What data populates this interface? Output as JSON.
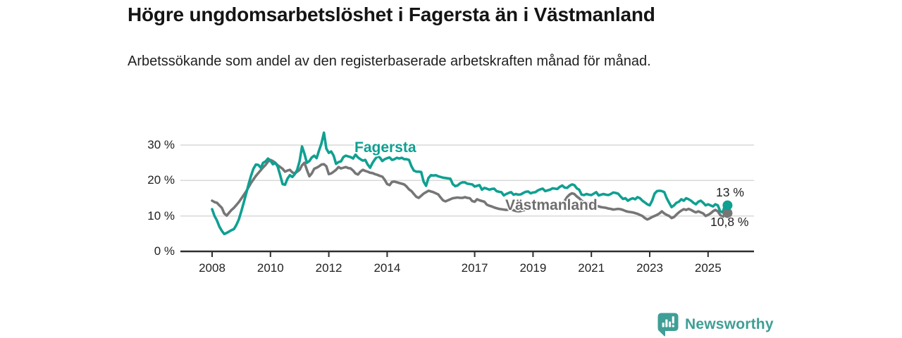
{
  "header": {
    "title": "Högre ungdomsarbetslöshet i Fagersta än i Västmanland",
    "subtitle": "Arbetssökande som andel av den registerbaserade arbetskraften månad för månad."
  },
  "branding": {
    "name": "Newsworthy",
    "icon": "bar-chart-speech-bubble-logo"
  },
  "colors": {
    "fagersta": "#0FA091",
    "vastmanland": "#767676",
    "grid": "#d9d9d9",
    "axis": "#2e2e2e",
    "title_text": "#141414",
    "logo_teal": "#3f9e95"
  },
  "chart_data": {
    "type": "line",
    "title": "Högre ungdomsarbetslöshet i Fagersta än i Västmanland",
    "subtitle": "Arbetssökande som andel av den registerbaserade arbetskraften månad för månad.",
    "x_axis": {
      "unit": "year (monthly data)",
      "ticks": [
        2008,
        2010,
        2012,
        2014,
        2017,
        2019,
        2021,
        2023,
        2025
      ],
      "tick_labels": [
        "2008",
        "2010",
        "2012",
        "2014",
        "2017",
        "2019",
        "2021",
        "2023",
        "2025"
      ],
      "range": [
        2007.75,
        2025.95
      ]
    },
    "y_axis": {
      "unit": "%",
      "ticks": [
        0,
        10,
        20,
        30
      ],
      "tick_labels": [
        "0 %",
        "10 %",
        "20 %",
        "30 %"
      ],
      "range": [
        0,
        34
      ],
      "grid": "horizontal lines at 10, 20, 30"
    },
    "legend_position": "inline labels on lines",
    "x_start": 2008.0,
    "x_step": 0.08333,
    "series": [
      {
        "name": "Fagersta",
        "color": "#0FA091",
        "end_label": "13 %",
        "end_value": 13,
        "values": [
          11.9,
          10.0,
          8.7,
          7.0,
          5.8,
          4.9,
          5.2,
          5.6,
          6.0,
          6.3,
          7.5,
          9.0,
          11.3,
          13.7,
          16.3,
          18.9,
          21.3,
          23.3,
          24.5,
          24.4,
          23.6,
          25.0,
          25.4,
          26.2,
          25.6,
          24.6,
          25.0,
          23.9,
          21.5,
          19.0,
          18.8,
          20.5,
          21.5,
          21.0,
          21.8,
          23.0,
          25.5,
          29.6,
          27.5,
          25.0,
          25.5,
          26.5,
          27.0,
          26.3,
          28.5,
          30.5,
          33.5,
          29.0,
          27.8,
          28.2,
          27.0,
          24.7,
          25.2,
          25.4,
          26.6,
          27.0,
          26.8,
          26.6,
          26.2,
          27.3,
          26.5,
          26.0,
          25.6,
          25.8,
          24.5,
          23.6,
          25.0,
          26.0,
          26.8,
          26.5,
          25.5,
          26.0,
          26.3,
          26.5,
          25.8,
          26.0,
          26.4,
          26.2,
          26.4,
          26.0,
          26.0,
          25.8,
          24.0,
          22.8,
          22.5,
          22.5,
          22.4,
          19.7,
          18.5,
          20.7,
          21.5,
          21.4,
          21.5,
          21.2,
          21.0,
          20.8,
          20.7,
          20.6,
          20.5,
          19.0,
          18.4,
          18.6,
          19.2,
          19.5,
          19.5,
          19.1,
          19.0,
          18.9,
          18.3,
          18.5,
          18.7,
          17.4,
          17.9,
          17.7,
          17.4,
          17.6,
          17.7,
          17.0,
          16.8,
          16.7,
          15.8,
          16.2,
          16.5,
          16.7,
          16.0,
          16.2,
          16.0,
          16.1,
          16.5,
          16.8,
          16.9,
          16.4,
          16.6,
          16.7,
          17.2,
          17.5,
          17.7,
          17.0,
          17.2,
          17.4,
          17.8,
          17.7,
          17.6,
          18.2,
          18.6,
          18.0,
          17.9,
          18.5,
          18.9,
          18.7,
          17.8,
          17.4,
          16.0,
          15.9,
          16.2,
          16.0,
          15.9,
          16.3,
          16.7,
          15.8,
          16.0,
          16.2,
          16.0,
          15.9,
          16.2,
          16.6,
          16.5,
          16.3,
          15.5,
          14.8,
          15.0,
          14.3,
          14.7,
          15.0,
          14.7,
          15.3,
          15.0,
          14.3,
          13.8,
          13.3,
          13.0,
          14.3,
          16.3,
          17.0,
          17.1,
          17.0,
          16.7,
          15.0,
          13.7,
          12.5,
          13.0,
          13.7,
          14.0,
          14.7,
          14.3,
          15.0,
          14.7,
          14.3,
          13.7,
          13.3,
          14.0,
          14.3,
          13.7,
          13.0,
          13.3,
          13.0,
          12.7,
          13.3,
          13.0,
          11.3,
          11.0,
          13.0,
          13.0
        ]
      },
      {
        "name": "Västmanland",
        "color": "#767676",
        "end_label": "10,8 %",
        "end_value": 10.8,
        "values": [
          14.3,
          13.9,
          13.7,
          13.0,
          12.3,
          10.7,
          10.1,
          10.9,
          11.7,
          12.3,
          13.1,
          13.9,
          14.9,
          15.9,
          16.9,
          18.1,
          19.3,
          20.3,
          21.3,
          22.1,
          22.9,
          23.7,
          24.4,
          25.3,
          25.8,
          25.5,
          25.0,
          24.3,
          23.8,
          23.3,
          22.5,
          22.8,
          23.0,
          22.3,
          22.0,
          22.5,
          23.0,
          24.3,
          25.0,
          23.0,
          21.2,
          22.0,
          23.3,
          23.6,
          24.0,
          24.5,
          24.6,
          24.0,
          21.8,
          22.0,
          22.5,
          23.0,
          23.8,
          23.4,
          23.6,
          23.8,
          23.5,
          23.4,
          22.8,
          22.0,
          21.7,
          22.5,
          23.0,
          22.7,
          22.5,
          22.2,
          22.1,
          21.8,
          21.6,
          21.3,
          21.1,
          20.2,
          19.0,
          18.7,
          19.6,
          19.7,
          19.5,
          19.3,
          19.1,
          18.9,
          18.3,
          17.5,
          17.0,
          16.2,
          15.4,
          15.1,
          15.7,
          16.3,
          16.7,
          17.1,
          16.9,
          16.7,
          16.4,
          16.1,
          15.2,
          14.4,
          14.1,
          14.4,
          14.7,
          15.0,
          15.1,
          15.2,
          15.1,
          15.1,
          15.3,
          15.1,
          15.0,
          14.2,
          14.0,
          14.7,
          14.4,
          14.2,
          14.0,
          13.2,
          12.9,
          12.7,
          12.4,
          12.2,
          12.0,
          11.9,
          11.8,
          11.7,
          11.8,
          11.9,
          11.6,
          11.4,
          11.3,
          11.4,
          11.6,
          11.8,
          12.0,
          12.3,
          12.7,
          12.5,
          12.4,
          12.3,
          12.2,
          12.3,
          12.4,
          12.5,
          12.4,
          12.5,
          12.7,
          13.0,
          13.5,
          14.2,
          15.3,
          16.0,
          16.4,
          16.2,
          15.5,
          15.0,
          14.3,
          13.9,
          13.7,
          13.4,
          13.2,
          13.0,
          12.9,
          12.7,
          12.5,
          12.4,
          12.3,
          12.1,
          12.0,
          11.8,
          11.9,
          12.0,
          11.9,
          11.7,
          11.4,
          11.2,
          11.1,
          11.0,
          10.8,
          10.6,
          10.3,
          10.0,
          9.4,
          9.0,
          9.3,
          9.7,
          10.0,
          10.3,
          10.7,
          11.3,
          10.7,
          10.3,
          10.0,
          9.4,
          9.7,
          10.4,
          11.0,
          11.5,
          11.9,
          11.7,
          12.0,
          11.7,
          11.3,
          11.0,
          11.3,
          11.0,
          10.7,
          10.0,
          10.3,
          10.7,
          11.3,
          11.7,
          11.3,
          10.3,
          9.7,
          10.5,
          10.8
        ]
      }
    ]
  }
}
